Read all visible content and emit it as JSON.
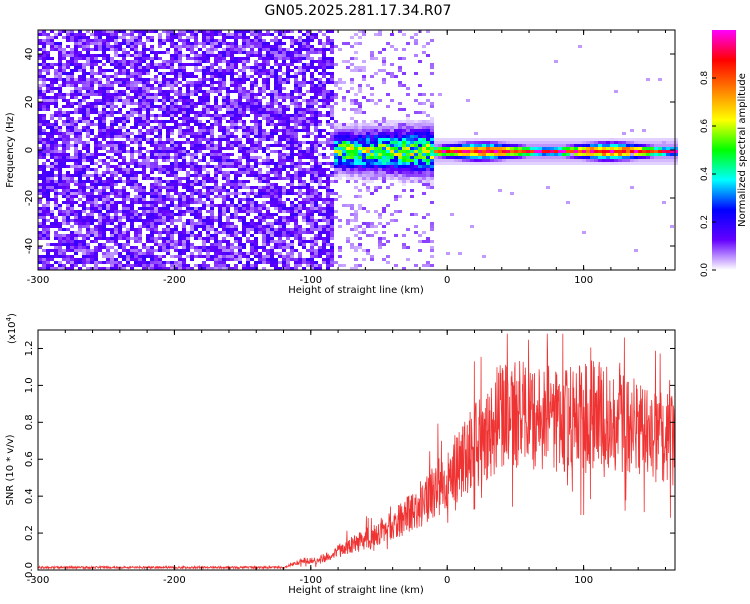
{
  "title": "GN05.2025.281.17.34.R07",
  "chart_data": [
    {
      "type": "heatmap",
      "name": "spectrogram",
      "xlabel": "Height of straight line (km)",
      "ylabel": "Frequency (Hz)",
      "xlim": [
        -300,
        167
      ],
      "ylim": [
        -50,
        50
      ],
      "xticks": [
        -300,
        -200,
        -100,
        0,
        100
      ],
      "yticks": [
        -40,
        -20,
        0,
        20,
        40
      ],
      "colorbar": {
        "label": "Normalized spectral amplitude",
        "range": [
          0,
          1
        ],
        "ticks": [
          0.0,
          0.2,
          0.4,
          0.6,
          0.8
        ],
        "colormap": [
          "#ffffff",
          "#6400ff",
          "#0000ff",
          "#00ffff",
          "#00ff00",
          "#ffff00",
          "#ff8000",
          "#ff0000",
          "#ff00ff"
        ]
      },
      "regions": [
        {
          "x_range": [
            -300,
            -85
          ],
          "description": "broadband noise",
          "amplitude": 0.1
        },
        {
          "x_range": [
            -85,
            -10
          ],
          "description": "signal emerging near 0 Hz",
          "center_freq": 0,
          "bandwidth": 8,
          "amplitude": 0.4
        },
        {
          "x_range": [
            -10,
            167
          ],
          "description": "strong narrow line near 0 Hz",
          "center_freq": 0,
          "bandwidth": 3,
          "amplitude": 0.9
        }
      ]
    },
    {
      "type": "line",
      "name": "snr",
      "xlabel": "Height of straight line (km)",
      "ylabel": "SNR (10 * v/v)",
      "yscale_label": "(x10",
      "yscale_exp": "4",
      "yscale_close": ")",
      "xlim": [
        -300,
        167
      ],
      "ylim": [
        0,
        1.3
      ],
      "xticks": [
        -300,
        -200,
        -100,
        0,
        100
      ],
      "yticks": [
        0.0,
        0.2,
        0.4,
        0.6,
        0.8,
        1.0,
        1.2
      ],
      "color": "#ef3333",
      "series_keypoints": {
        "x": [
          -300,
          -120,
          -112,
          -105,
          -95,
          -75,
          -55,
          -40,
          -25,
          -10,
          0,
          15,
          30,
          40,
          50,
          70,
          90,
          110,
          130,
          150,
          167
        ],
        "y": [
          0.01,
          0.01,
          0.04,
          0.05,
          0.05,
          0.12,
          0.18,
          0.24,
          0.32,
          0.42,
          0.5,
          0.62,
          0.75,
          0.85,
          0.85,
          0.8,
          0.82,
          0.85,
          0.8,
          0.72,
          0.7
        ]
      },
      "noise": {
        "relative": 0.35,
        "spikes_max": 1.28
      }
    }
  ]
}
